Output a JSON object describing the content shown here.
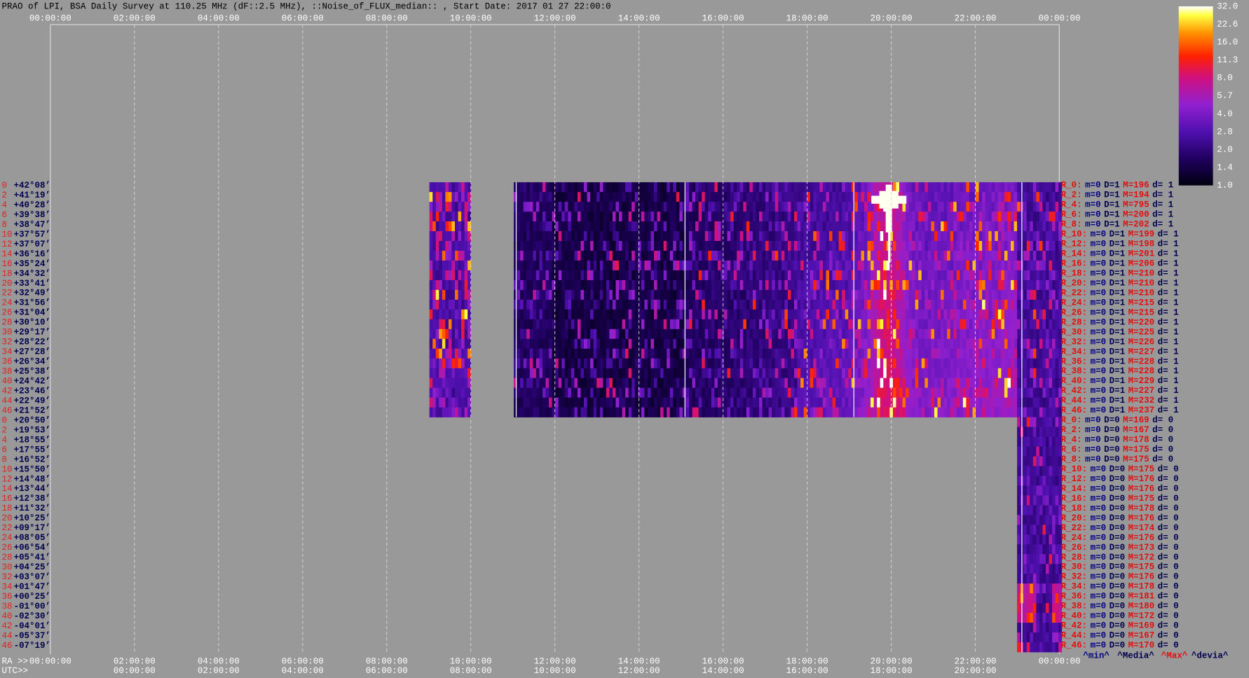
{
  "header": {
    "title": "PRAO of LPI, BSA Daily Survey at 110.25 MHz (dF::2.5 MHz), ::Noise_of_FLUX_median:: , Start Date: 2017 01 27 22:00:0"
  },
  "time_axis": {
    "top_labels": [
      "00:00:00",
      "02:00:00",
      "04:00:00",
      "06:00:00",
      "08:00:00",
      "10:00:00",
      "12:00:00",
      "14:00:00",
      "16:00:00",
      "18:00:00",
      "20:00:00",
      "22:00:00",
      "00:00:00"
    ],
    "ra_label": "RA >>",
    "ra_labels": [
      "00:00:00",
      "02:00:00",
      "04:00:00",
      "06:00:00",
      "08:00:00",
      "10:00:00",
      "12:00:00",
      "14:00:00",
      "16:00:00",
      "18:00:00",
      "20:00:00",
      "22:00:00",
      "00:00:00"
    ],
    "utc_label": "UTC>>",
    "utc_labels": [
      "00:00:00",
      "02:00:00",
      "04:00:00",
      "06:00:00",
      "08:00:00",
      "10:00:00",
      "12:00:00",
      "14:00:00",
      "16:00:00",
      "18:00:00",
      "20:00:00"
    ]
  },
  "colorbar": {
    "labels": [
      "32.0",
      "22.6",
      "16.0",
      "11.3",
      "8.0",
      "5.7",
      "4.0",
      "2.8",
      "2.0",
      "1.4",
      "1.0"
    ]
  },
  "row_index": [
    "0",
    "2",
    "4",
    "6",
    "8",
    "10",
    "12",
    "14",
    "16",
    "18",
    "20",
    "22",
    "24",
    "26",
    "28",
    "30",
    "32",
    "34",
    "36",
    "38",
    "40",
    "42",
    "44",
    "46",
    "0",
    "2",
    "4",
    "6",
    "8",
    "10",
    "12",
    "14",
    "16",
    "18",
    "20",
    "22",
    "24",
    "26",
    "28",
    "30",
    "32",
    "34",
    "36",
    "38",
    "40",
    "42",
    "44",
    "46"
  ],
  "declinations": [
    "+42°08’",
    "+41°19’",
    "+40°28’",
    "+39°38’",
    "+38°47’",
    "+37°57’",
    "+37°07’",
    "+36°16’",
    "+35°24’",
    "+34°32’",
    "+33°41’",
    "+32°49’",
    "+31°56’",
    "+31°04’",
    "+30°10’",
    "+29°17’",
    "+28°22’",
    "+27°28’",
    "+26°34’",
    "+25°38’",
    "+24°42’",
    "+23°46’",
    "+22°49’",
    "+21°52’",
    "+20°50’",
    "+19°53’",
    "+18°55’",
    "+17°55’",
    "+16°52’",
    "+15°50’",
    "+14°48’",
    "+13°44’",
    "+12°38’",
    "+11°32’",
    "+10°25’",
    "+09°17’",
    "+08°05’",
    "+06°54’",
    "+05°41’",
    "+04°25’",
    "+03°07’",
    "+01°47’",
    "+00°25’",
    "-01°00’",
    "-02°30’",
    "-04°01’",
    "-05°37’",
    "-07°19’"
  ],
  "stats": [
    [
      "R_0:",
      "m=0",
      "D=1",
      "M=196",
      "d= 1"
    ],
    [
      "R_2:",
      "m=0",
      "D=1",
      "M=194",
      "d= 1"
    ],
    [
      "R_4:",
      "m=0",
      "D=1",
      "M=795",
      "d= 1"
    ],
    [
      "R_6:",
      "m=0",
      "D=1",
      "M=200",
      "d= 1"
    ],
    [
      "R_8:",
      "m=0",
      "D=1",
      "M=202",
      "d= 1"
    ],
    [
      "R_10:",
      "m=0",
      "D=1",
      "M=199",
      "d= 1"
    ],
    [
      "R_12:",
      "m=0",
      "D=1",
      "M=198",
      "d= 1"
    ],
    [
      "R_14:",
      "m=0",
      "D=1",
      "M=201",
      "d= 1"
    ],
    [
      "R_16:",
      "m=0",
      "D=1",
      "M=206",
      "d= 1"
    ],
    [
      "R_18:",
      "m=0",
      "D=1",
      "M=210",
      "d= 1"
    ],
    [
      "R_20:",
      "m=0",
      "D=1",
      "M=210",
      "d= 1"
    ],
    [
      "R_22:",
      "m=0",
      "D=1",
      "M=210",
      "d= 1"
    ],
    [
      "R_24:",
      "m=0",
      "D=1",
      "M=215",
      "d= 1"
    ],
    [
      "R_26:",
      "m=0",
      "D=1",
      "M=215",
      "d= 1"
    ],
    [
      "R_28:",
      "m=0",
      "D=1",
      "M=220",
      "d= 1"
    ],
    [
      "R_30:",
      "m=0",
      "D=1",
      "M=225",
      "d= 1"
    ],
    [
      "R_32:",
      "m=0",
      "D=1",
      "M=226",
      "d= 1"
    ],
    [
      "R_34:",
      "m=0",
      "D=1",
      "M=227",
      "d= 1"
    ],
    [
      "R_36:",
      "m=0",
      "D=1",
      "M=228",
      "d= 1"
    ],
    [
      "R_38:",
      "m=0",
      "D=1",
      "M=228",
      "d= 1"
    ],
    [
      "R_40:",
      "m=0",
      "D=1",
      "M=229",
      "d= 1"
    ],
    [
      "R_42:",
      "m=0",
      "D=1",
      "M=227",
      "d= 1"
    ],
    [
      "R_44:",
      "m=0",
      "D=1",
      "M=232",
      "d= 1"
    ],
    [
      "R_46:",
      "m=0",
      "D=1",
      "M=237",
      "d= 1"
    ],
    [
      "R_0:",
      "m=0",
      "D=0",
      "M=169",
      "d= 0"
    ],
    [
      "R_2:",
      "m=0",
      "D=0",
      "M=167",
      "d= 0"
    ],
    [
      "R_4:",
      "m=0",
      "D=0",
      "M=178",
      "d= 0"
    ],
    [
      "R_6:",
      "m=0",
      "D=0",
      "M=175",
      "d= 0"
    ],
    [
      "R_8:",
      "m=0",
      "D=0",
      "M=175",
      "d= 0"
    ],
    [
      "R_10:",
      "m=0",
      "D=0",
      "M=175",
      "d= 0"
    ],
    [
      "R_12:",
      "m=0",
      "D=0",
      "M=176",
      "d= 0"
    ],
    [
      "R_14:",
      "m=0",
      "D=0",
      "M=176",
      "d= 0"
    ],
    [
      "R_16:",
      "m=0",
      "D=0",
      "M=175",
      "d= 0"
    ],
    [
      "R_18:",
      "m=0",
      "D=0",
      "M=178",
      "d= 0"
    ],
    [
      "R_20:",
      "m=0",
      "D=0",
      "M=176",
      "d= 0"
    ],
    [
      "R_22:",
      "m=0",
      "D=0",
      "M=174",
      "d= 0"
    ],
    [
      "R_24:",
      "m=0",
      "D=0",
      "M=176",
      "d= 0"
    ],
    [
      "R_26:",
      "m=0",
      "D=0",
      "M=173",
      "d= 0"
    ],
    [
      "R_28:",
      "m=0",
      "D=0",
      "M=172",
      "d= 0"
    ],
    [
      "R_30:",
      "m=0",
      "D=0",
      "M=175",
      "d= 0"
    ],
    [
      "R_32:",
      "m=0",
      "D=0",
      "M=176",
      "d= 0"
    ],
    [
      "R_34:",
      "m=0",
      "D=0",
      "M=178",
      "d= 0"
    ],
    [
      "R_36:",
      "m=0",
      "D=0",
      "M=181",
      "d= 0"
    ],
    [
      "R_38:",
      "m=0",
      "D=0",
      "M=180",
      "d= 0"
    ],
    [
      "R_40:",
      "m=0",
      "D=0",
      "M=172",
      "d= 0"
    ],
    [
      "R_42:",
      "m=0",
      "D=0",
      "M=169",
      "d= 0"
    ],
    [
      "R_44:",
      "m=0",
      "D=0",
      "M=167",
      "d= 0"
    ],
    [
      "R_46:",
      "m=0",
      "D=0",
      "M=170",
      "d= 0"
    ]
  ],
  "footer_legend": [
    "^min^",
    "^Media^",
    "^Max^",
    "^devia^"
  ]
}
